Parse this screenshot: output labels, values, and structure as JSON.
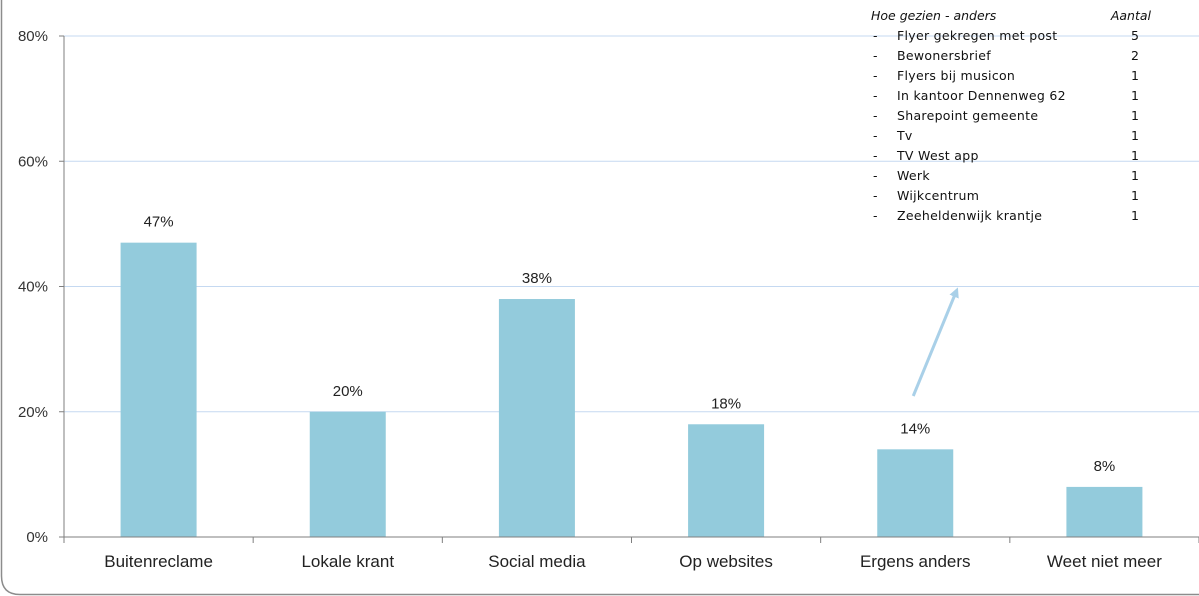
{
  "colors": {
    "bar": "#93cbdc",
    "grid": "#c5d9f1",
    "axis": "#7f7f7f",
    "frame": "#8c8c8c",
    "arrow": "#a9d0e8"
  },
  "chart_data": {
    "type": "bar",
    "categories": [
      "Buitenreclame",
      "Lokale krant",
      "Social media",
      "Op websites",
      "Ergens anders",
      "Weet niet meer"
    ],
    "values": [
      47,
      20,
      38,
      18,
      14,
      8
    ],
    "value_labels": [
      "47%",
      "20%",
      "38%",
      "18%",
      "14%",
      "8%"
    ],
    "ylim": [
      0,
      80
    ],
    "yticks": [
      0,
      20,
      40,
      60,
      80
    ],
    "ytick_labels": [
      "0%",
      "20%",
      "40%",
      "60%",
      "80%"
    ],
    "title": "",
    "xlabel": "",
    "ylabel": "",
    "grid": true,
    "legend": "none"
  },
  "annotation_table": {
    "header_label": "Hoe gezien - anders",
    "header_count": "Aantal",
    "dash": "-",
    "rows": [
      {
        "label": "Flyer gekregen met post",
        "count": "5"
      },
      {
        "label": "Bewonersbrief",
        "count": "2"
      },
      {
        "label": "Flyers bij musicon",
        "count": "1"
      },
      {
        "label": "In kantoor Dennenweg 62",
        "count": "1"
      },
      {
        "label": "Sharepoint gemeente",
        "count": "1"
      },
      {
        "label": "Tv",
        "count": "1"
      },
      {
        "label": "TV West app",
        "count": "1"
      },
      {
        "label": "Werk",
        "count": "1"
      },
      {
        "label": "Wijkcentrum",
        "count": "1"
      },
      {
        "label": "Zeeheldenwijk krantje",
        "count": "1"
      }
    ],
    "arrow_points_to": "Ergens anders"
  }
}
